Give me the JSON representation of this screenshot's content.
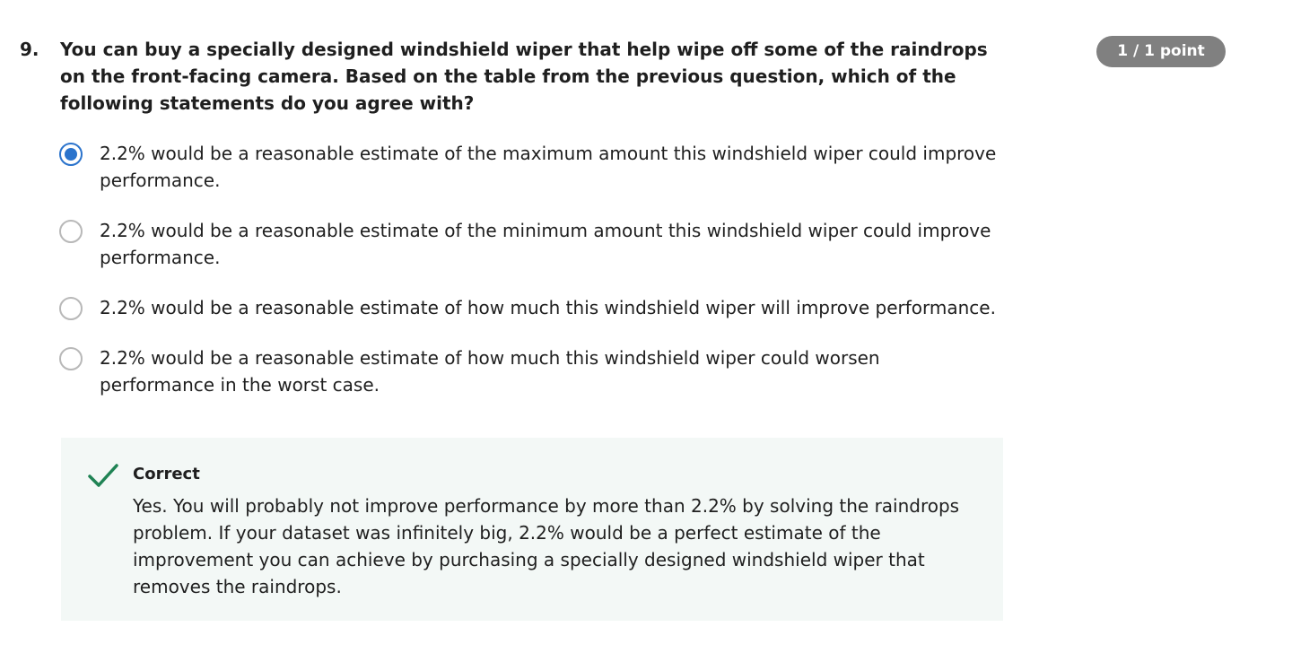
{
  "question": {
    "number": "9.",
    "text": "You can buy a specially designed windshield wiper that help wipe off some of the raindrops on the front-facing camera. Based on the table from the previous question, which of the following statements do you agree with?",
    "points": "1 / 1 point"
  },
  "options": [
    {
      "label": "2.2% would be a reasonable estimate of the maximum amount this windshield wiper could improve performance.",
      "selected": true
    },
    {
      "label": "2.2% would be a reasonable estimate of the minimum amount this windshield wiper could improve performance.",
      "selected": false
    },
    {
      "label": "2.2% would be a reasonable estimate of how much this windshield wiper will improve performance.",
      "selected": false
    },
    {
      "label": "2.2% would be a reasonable estimate of how much this windshield wiper could worsen performance in the worst case.",
      "selected": false
    }
  ],
  "feedback": {
    "icon": "checkmark-icon",
    "title": "Correct",
    "text": "Yes. You will probably not improve performance by more than 2.2% by solving the raindrops problem. If your dataset was infinitely big, 2.2% would be a perfect estimate of the improvement you can achieve by purchasing a specially designed windshield wiper that removes the raindrops."
  },
  "colors": {
    "accent": "#2a73cc",
    "correct": "#1f8354",
    "badge": "#808080",
    "feedback_bg": "#f3f8f6"
  }
}
